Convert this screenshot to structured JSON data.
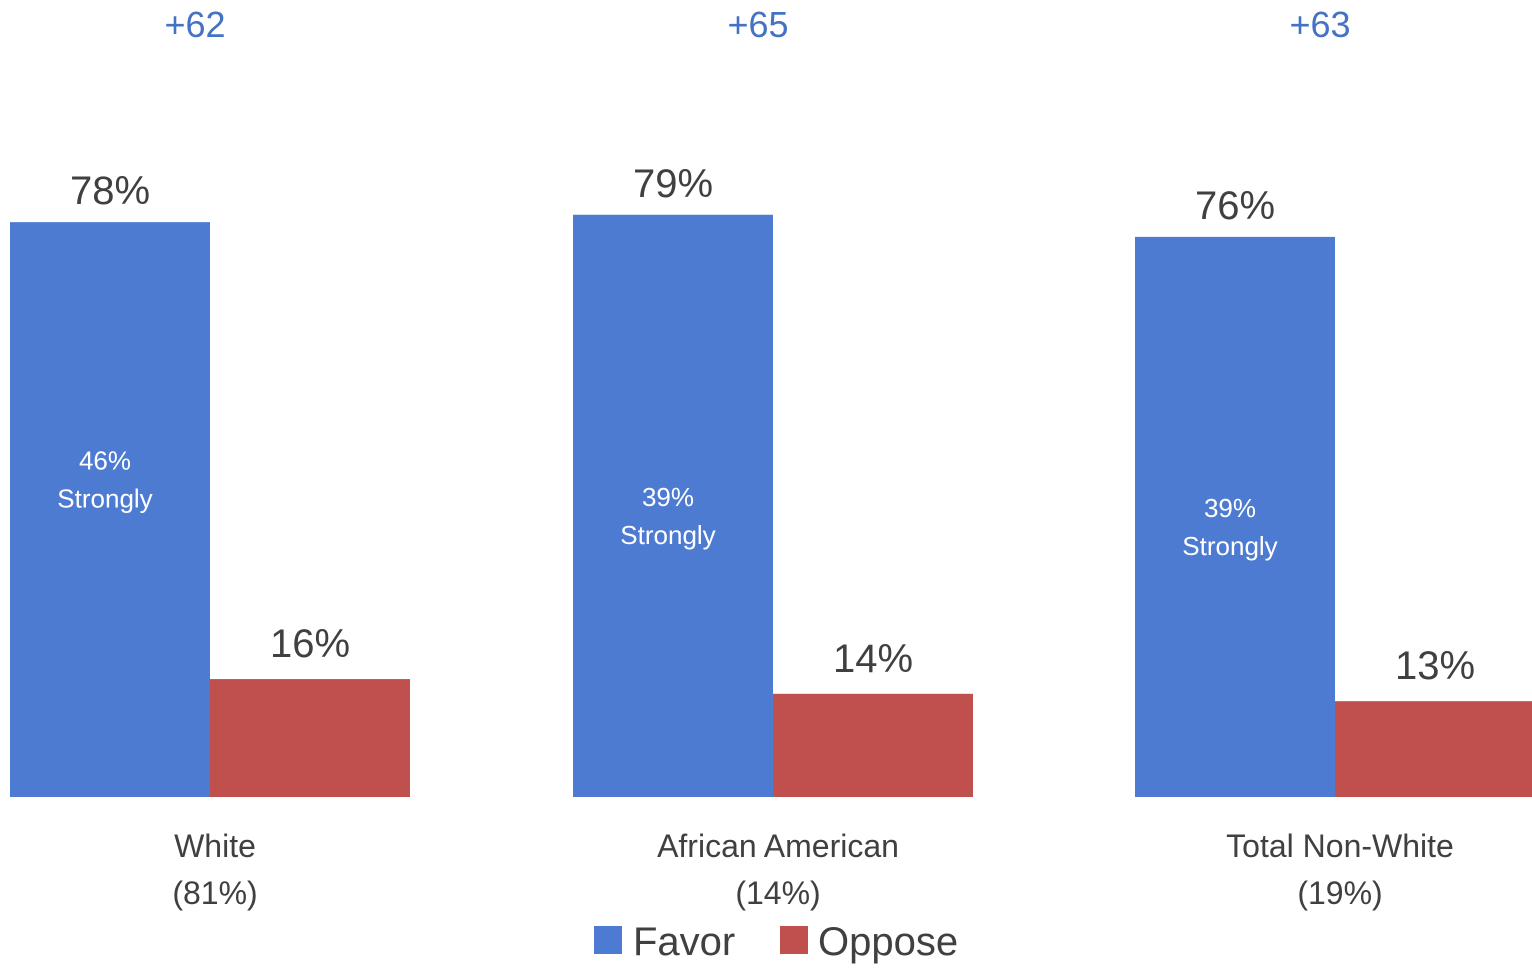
{
  "chart_data": {
    "type": "bar",
    "categories": [
      {
        "name": "White",
        "share": "(81%)"
      },
      {
        "name": "African American",
        "share": "(14%)"
      },
      {
        "name": "Total Non-White",
        "share": "(19%)"
      }
    ],
    "series": [
      {
        "name": "Favor",
        "color": "#4e7bd2",
        "values": [
          78,
          79,
          76
        ],
        "labels": [
          "78%",
          "79%",
          "76%"
        ]
      },
      {
        "name": "Oppose",
        "color": "#c0504d",
        "values": [
          16,
          14,
          13
        ],
        "labels": [
          "16%",
          "14%",
          "13%"
        ]
      }
    ],
    "net_labels": [
      "+62",
      "+65",
      "+63"
    ],
    "strongly_labels": [
      {
        "value": "46%",
        "text": "Strongly"
      },
      {
        "value": "39%",
        "text": "Strongly"
      },
      {
        "value": "39%",
        "text": "Strongly"
      }
    ],
    "ylim": [
      0,
      100
    ],
    "grid": false,
    "legend_position": "bottom",
    "title": "",
    "xlabel": "",
    "ylabel": ""
  }
}
